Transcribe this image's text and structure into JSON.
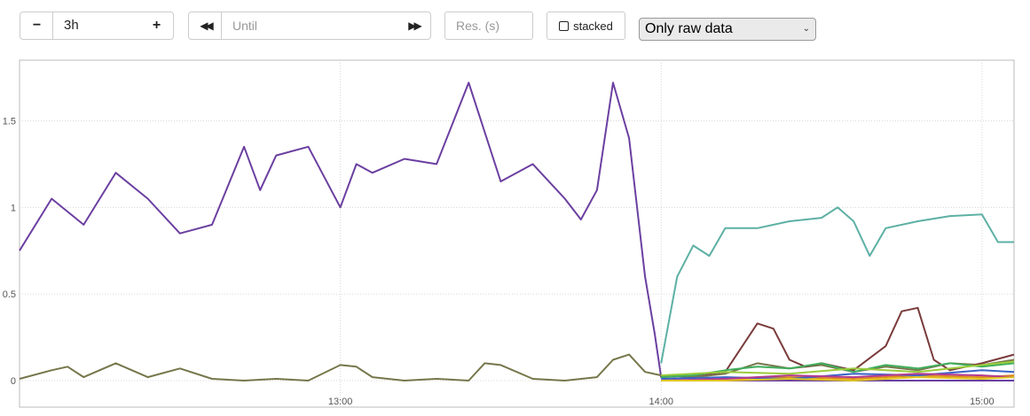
{
  "toolbar": {
    "range_value": "3h",
    "minus_icon": "minus-icon",
    "plus_icon": "plus-icon",
    "back_icon": "rewind-icon",
    "forward_icon": "fast-forward-icon",
    "until_placeholder": "Until",
    "resolution_placeholder": "Res. (s)",
    "stacked_label": "stacked",
    "select_value": "Only raw data"
  },
  "chart_data": {
    "type": "line",
    "title": "",
    "xlabel": "",
    "ylabel": "",
    "x_ticks": [
      "13:00",
      "14:00",
      "15:00"
    ],
    "y_ticks": [
      "0",
      "0.5",
      "1",
      "1.5"
    ],
    "x_range_hours": [
      12.0,
      15.1
    ],
    "ylim": [
      0,
      1.85
    ],
    "grid": true,
    "series": [
      {
        "color": "#6b3fa0",
        "x": [
          12.0,
          12.1,
          12.2,
          12.3,
          12.4,
          12.5,
          12.6,
          12.7,
          12.75,
          12.8,
          12.9,
          13.0,
          13.05,
          13.1,
          13.2,
          13.3,
          13.4,
          13.5,
          13.6,
          13.7,
          13.75,
          13.8,
          13.85,
          13.9,
          13.95,
          13.98,
          14.0,
          14.02,
          14.1,
          14.5,
          15.1
        ],
        "y": [
          0.75,
          1.05,
          0.9,
          1.2,
          1.05,
          0.85,
          0.9,
          1.35,
          1.1,
          1.3,
          1.35,
          1.0,
          1.25,
          1.2,
          1.28,
          1.25,
          1.72,
          1.15,
          1.25,
          1.05,
          0.93,
          1.1,
          1.72,
          1.4,
          0.6,
          0.27,
          0.02,
          0.0,
          0.0,
          0.0,
          0.0
        ]
      },
      {
        "color": "#76764b",
        "x": [
          12.0,
          12.1,
          12.15,
          12.2,
          12.3,
          12.4,
          12.5,
          12.6,
          12.7,
          12.8,
          12.9,
          13.0,
          13.05,
          13.1,
          13.2,
          13.3,
          13.4,
          13.45,
          13.5,
          13.6,
          13.7,
          13.8,
          13.85,
          13.9,
          13.95,
          14.0,
          14.1,
          14.2,
          14.3,
          14.4,
          14.5,
          14.6,
          14.7,
          14.8,
          14.9,
          15.0,
          15.1
        ],
        "y": [
          0.01,
          0.06,
          0.08,
          0.02,
          0.1,
          0.02,
          0.07,
          0.01,
          0.0,
          0.01,
          0.0,
          0.09,
          0.08,
          0.02,
          0.0,
          0.01,
          0.0,
          0.1,
          0.09,
          0.01,
          0.0,
          0.02,
          0.12,
          0.15,
          0.05,
          0.03,
          0.02,
          0.04,
          0.1,
          0.07,
          0.09,
          0.05,
          0.08,
          0.06,
          0.1,
          0.09,
          0.12
        ]
      },
      {
        "color": "#5cb0a4",
        "x": [
          14.0,
          14.05,
          14.1,
          14.15,
          14.2,
          14.3,
          14.4,
          14.5,
          14.55,
          14.6,
          14.65,
          14.7,
          14.8,
          14.9,
          15.0,
          15.05,
          15.1
        ],
        "y": [
          0.1,
          0.6,
          0.78,
          0.72,
          0.88,
          0.88,
          0.92,
          0.94,
          1.0,
          0.92,
          0.72,
          0.88,
          0.92,
          0.95,
          0.96,
          0.8,
          0.8
        ]
      },
      {
        "color": "#7a3b3b",
        "x": [
          14.0,
          14.1,
          14.2,
          14.3,
          14.35,
          14.4,
          14.45,
          14.5,
          14.6,
          14.7,
          14.75,
          14.8,
          14.85,
          14.9,
          14.95,
          15.0,
          15.1
        ],
        "y": [
          0.02,
          0.03,
          0.05,
          0.33,
          0.3,
          0.12,
          0.08,
          0.1,
          0.06,
          0.2,
          0.4,
          0.42,
          0.12,
          0.06,
          0.08,
          0.1,
          0.15
        ]
      },
      {
        "color": "#3fae5c",
        "x": [
          14.0,
          14.1,
          14.2,
          14.3,
          14.4,
          14.5,
          14.6,
          14.7,
          14.8,
          14.9,
          15.0,
          15.1
        ],
        "y": [
          0.02,
          0.03,
          0.06,
          0.08,
          0.07,
          0.1,
          0.05,
          0.09,
          0.07,
          0.1,
          0.08,
          0.1
        ]
      },
      {
        "color": "#e08a1e",
        "x": [
          14.0,
          14.2,
          14.4,
          14.6,
          14.8,
          15.0,
          15.1
        ],
        "y": [
          0.0,
          0.01,
          0.02,
          0.01,
          0.03,
          0.02,
          0.03
        ]
      },
      {
        "color": "#3a64c8",
        "x": [
          14.0,
          14.2,
          14.4,
          14.6,
          14.8,
          15.0,
          15.1
        ],
        "y": [
          0.01,
          0.02,
          0.01,
          0.04,
          0.03,
          0.06,
          0.05
        ]
      },
      {
        "color": "#b33b8f",
        "x": [
          14.0,
          14.2,
          14.4,
          14.6,
          14.8,
          15.0,
          15.1
        ],
        "y": [
          0.0,
          0.01,
          0.03,
          0.02,
          0.04,
          0.03,
          0.02
        ]
      },
      {
        "color": "#9bcc3b",
        "x": [
          14.0,
          14.2,
          14.4,
          14.6,
          14.8,
          15.0,
          15.1
        ],
        "y": [
          0.03,
          0.05,
          0.04,
          0.07,
          0.05,
          0.09,
          0.11
        ]
      },
      {
        "color": "#e0c41e",
        "x": [
          14.0,
          14.2,
          14.4,
          14.6,
          14.8,
          15.0,
          15.1
        ],
        "y": [
          0.0,
          0.0,
          0.01,
          0.0,
          0.02,
          0.01,
          0.02
        ]
      }
    ]
  }
}
